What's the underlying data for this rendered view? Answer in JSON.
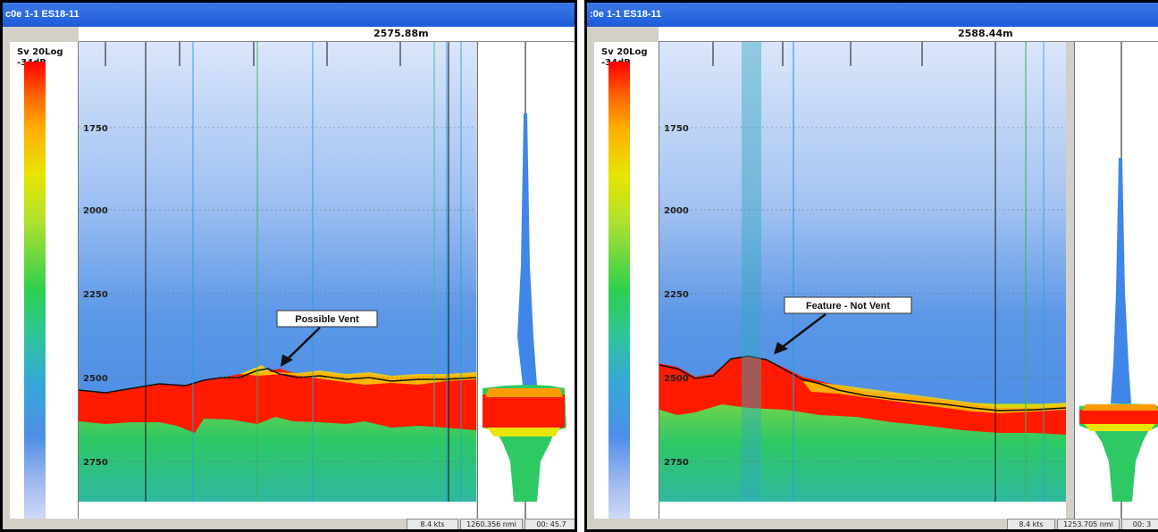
{
  "windows": [
    {
      "title": "c0e 1-1 ES18-11",
      "distance": "2575.88m",
      "colorbar": {
        "mode": "Sv 20Log",
        "max": "-34dB"
      },
      "depth_ticks": [
        "1750",
        "2000",
        "2250",
        "2500",
        "2750"
      ],
      "annotation": "Possible Vent",
      "status": {
        "speed": "8.4 kts",
        "distance_nmi": "1260.356 nmi",
        "time": "00: 45.7"
      }
    },
    {
      "title": ":0e 1-1 ES18-11",
      "distance": "2588.44m",
      "colorbar": {
        "mode": "Sv 20Log",
        "max": "-34dB"
      },
      "depth_ticks": [
        "1750",
        "2000",
        "2250",
        "2500",
        "2750"
      ],
      "annotation": "Feature - Not Vent",
      "status": {
        "speed": "8.4 kts",
        "distance_nmi": "1253.705 nmi",
        "time": "00: 3"
      }
    }
  ],
  "colors": {
    "title_bar": "#1c5bd8",
    "water_column": "#3f86e8",
    "seafloor": "#ff1a00",
    "sub_bottom": "#2ec865"
  }
}
